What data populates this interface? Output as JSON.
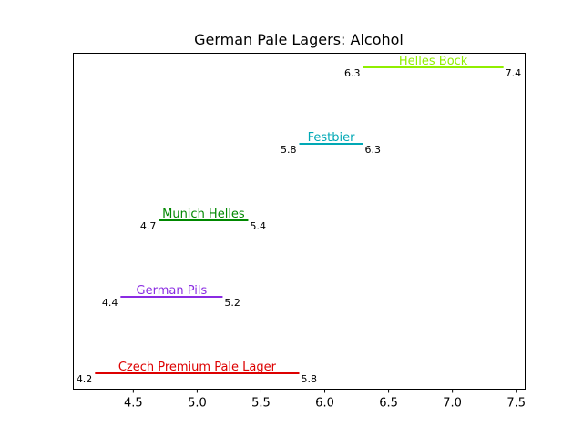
{
  "chart_data": {
    "type": "range",
    "title": "German Pale Lagers: Alcohol",
    "xlabel": "",
    "ylabel": "",
    "xlim": [
      4.03,
      7.57
    ],
    "x_ticks": [
      4.5,
      5.0,
      5.5,
      6.0,
      6.5,
      7.0,
      7.5
    ],
    "x_tick_labels": [
      "4.5",
      "5.0",
      "5.5",
      "6.0",
      "6.5",
      "7.0",
      "7.5"
    ],
    "grid": false,
    "series": [
      {
        "name": "Czech Premium Pale Lager",
        "min": 4.2,
        "max": 5.8,
        "min_label": "4.2",
        "max_label": "5.8",
        "color": "#dd0000"
      },
      {
        "name": "German Pils",
        "min": 4.4,
        "max": 5.2,
        "min_label": "4.4",
        "max_label": "5.2",
        "color": "#8a2be2"
      },
      {
        "name": "Munich Helles",
        "min": 4.7,
        "max": 5.4,
        "min_label": "4.7",
        "max_label": "5.4",
        "color": "#008800"
      },
      {
        "name": "Festbier",
        "min": 5.8,
        "max": 6.3,
        "min_label": "5.8",
        "max_label": "6.3",
        "color": "#00a8b5"
      },
      {
        "name": "Helles Bock",
        "min": 6.3,
        "max": 7.4,
        "min_label": "6.3",
        "max_label": "7.4",
        "color": "#90ee00"
      }
    ]
  }
}
